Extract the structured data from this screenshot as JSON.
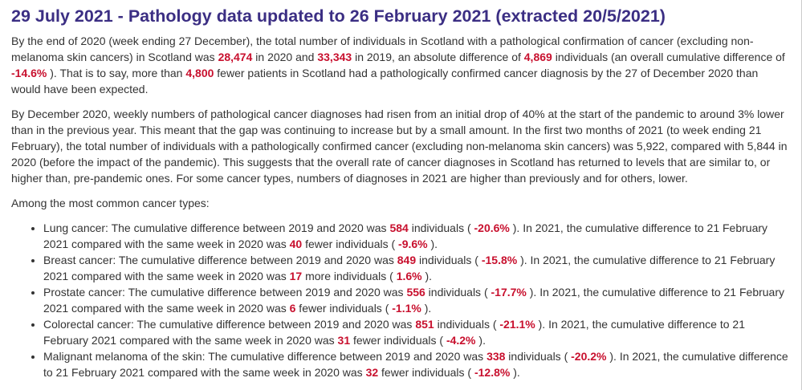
{
  "heading": "29 July 2021 - Pathology data updated to 26 February 2021 (extracted 20/5/2021)",
  "p1": {
    "t1": "By the end of 2020 (week ending 27 December), the total number of individuals in Scotland with a pathological confirmation of cancer (excluding non-melanoma skin cancers) in Scotland was ",
    "v1": "28,474",
    "t2": " in 2020 and ",
    "v2": "33,343",
    "t3": " in 2019, an absolute difference of ",
    "v3": "4,869",
    "t4": " individuals (an overall cumulative difference of ",
    "v4": "-14.6%",
    "t5": " ). That is to say, more than ",
    "v5": "4,800",
    "t6": " fewer patients in Scotland had a pathologically confirmed cancer diagnosis by the 27 of December 2020 than would have been expected."
  },
  "p2": "By December 2020, weekly numbers of pathological cancer diagnoses had risen from an initial drop of 40% at the start of the pandemic to around 3% lower than in the previous year. This meant that the gap was continuing to increase but by a small amount. In the first two months of 2021 (to week ending 21 February), the total number of individuals with a pathologically confirmed cancer (excluding non-melanoma skin cancers) was 5,922, compared with 5,844 in 2020 (before the impact of the pandemic). This suggests that the overall rate of cancer diagnoses in Scotland has returned to levels that are similar to, or higher than, pre-pandemic ones. For some cancer types, numbers of diagnoses in 2021 are higher than previously and for others, lower.",
  "p3": "Among the most common cancer types:",
  "list": [
    {
      "a": "Lung cancer: The cumulative difference between 2019 and 2020 was ",
      "v1": "584",
      "b": " individuals ( ",
      "v2": "-20.6%",
      "c": " ). In 2021, the cumulative difference to 21 February 2021 compared with the same week in 2020 was ",
      "v3": "40",
      "d": " fewer individuals ( ",
      "v4": "-9.6%",
      "e": " )."
    },
    {
      "a": "Breast cancer: The cumulative difference between 2019 and 2020 was ",
      "v1": "849",
      "b": " individuals ( ",
      "v2": "-15.8%",
      "c": " ). In 2021, the cumulative difference to 21 February 2021 compared with the same week in 2020 was ",
      "v3": "17",
      "d": " more individuals ( ",
      "v4": "1.6%",
      "e": " )."
    },
    {
      "a": "Prostate cancer: The cumulative difference between 2019 and 2020 was ",
      "v1": "556",
      "b": " individuals ( ",
      "v2": "-17.7%",
      "c": " ). In 2021, the cumulative difference to 21 February 2021 compared with the same week in 2020 was ",
      "v3": "6",
      "d": " fewer individuals ( ",
      "v4": "-1.1%",
      "e": " )."
    },
    {
      "a": "Colorectal cancer: The cumulative difference between 2019 and 2020 was ",
      "v1": "851",
      "b": " individuals ( ",
      "v2": "-21.1%",
      "c": " ). In 2021, the cumulative difference to 21 February 2021 compared with the same week in 2020 was ",
      "v3": "31",
      "d": " fewer individuals ( ",
      "v4": "-4.2%",
      "e": " )."
    },
    {
      "a": "Malignant melanoma of the skin: The cumulative difference between 2019 and 2020 was ",
      "v1": "338",
      "b": " individuals ( ",
      "v2": "-20.2%",
      "c": " ). In 2021, the cumulative difference to 21 February 2021 compared with the same week in 2020 was ",
      "v3": "32",
      "d": " fewer individuals ( ",
      "v4": "-12.8%",
      "e": " )."
    }
  ],
  "colors": {
    "heading": "#3b2e83",
    "highlight": "#c8102e",
    "text": "#333333"
  }
}
